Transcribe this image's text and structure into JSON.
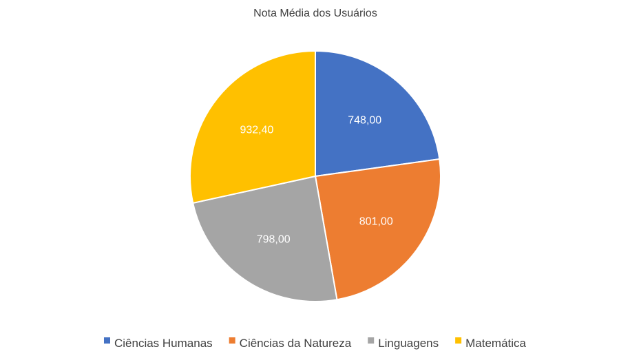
{
  "chart_data": {
    "type": "pie",
    "title": "Nota Média dos Usuários",
    "categories": [
      "Ciências Humanas",
      "Ciências da Natureza",
      "Linguagens",
      "Matemática"
    ],
    "values": [
      748.0,
      801.0,
      798.0,
      932.4
    ],
    "value_labels": [
      "748,00",
      "801,00",
      "798,00",
      "932,40"
    ],
    "colors": [
      "#4472C4",
      "#ED7D31",
      "#A5A5A5",
      "#FFC000"
    ],
    "start_angle_deg": 0,
    "direction": "clockwise",
    "legend_position": "bottom"
  }
}
